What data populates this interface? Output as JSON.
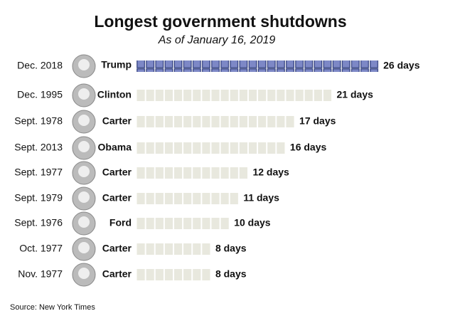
{
  "chart_data": {
    "type": "bar",
    "title": "Longest government shutdowns",
    "subtitle": "As of January 16, 2019",
    "categories": [
      "Dec. 2018",
      "Dec. 1995",
      "Sept. 1978",
      "Sept. 2013",
      "Sept. 1977",
      "Sept. 1979",
      "Sept. 1976",
      "Oct. 1977",
      "Nov. 1977"
    ],
    "presidents": [
      "Trump",
      "Clinton",
      "Carter",
      "Obama",
      "Carter",
      "Carter",
      "Ford",
      "Carter",
      "Carter"
    ],
    "values": [
      26,
      21,
      17,
      16,
      12,
      11,
      10,
      8,
      8
    ],
    "value_labels": [
      "26 days",
      "21 days",
      "17 days",
      "16 days",
      "12 days",
      "11 days",
      "10 days",
      "8 days",
      "8 days"
    ],
    "color": "#e8e8de",
    "highlight_color": "#7d88c6",
    "source": "Source: New York Times"
  }
}
